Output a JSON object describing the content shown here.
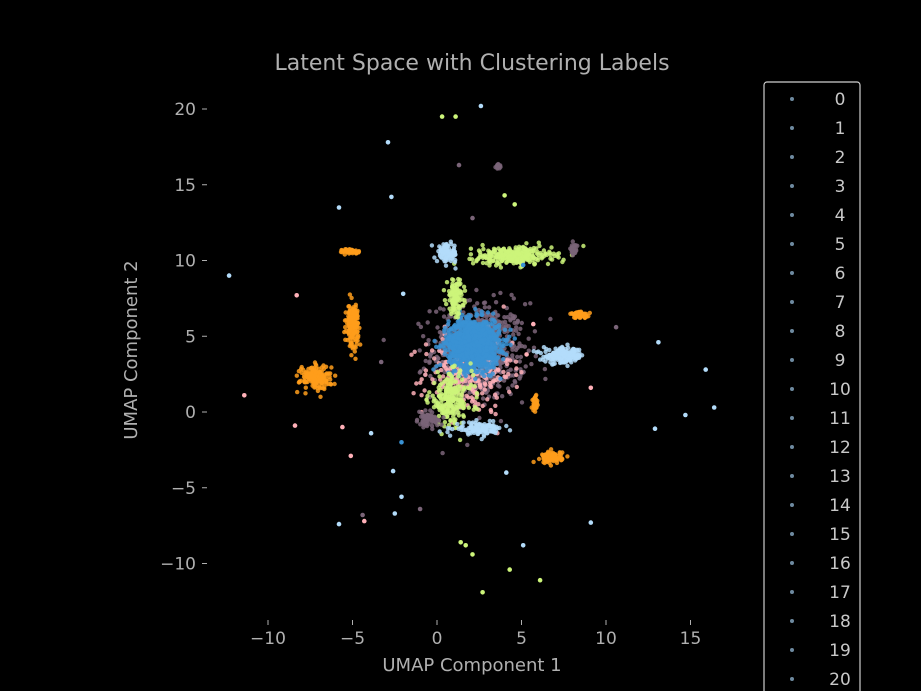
{
  "chart_data": {
    "type": "scatter",
    "title": "Latent Space with Clustering Labels",
    "xlabel": "UMAP Component 1",
    "ylabel": "UMAP Component 2",
    "xlim": [
      -13,
      17
    ],
    "ylim": [
      -13,
      22
    ],
    "xticks": [
      -10,
      -5,
      0,
      5,
      10,
      15
    ],
    "yticks": [
      -10,
      -5,
      0,
      5,
      10,
      15,
      20
    ],
    "xtick_labels": [
      "−10",
      "−5",
      "0",
      "5",
      "10",
      "15"
    ],
    "ytick_labels": [
      "−10",
      "−5",
      "0",
      "5",
      "10",
      "15",
      "20"
    ],
    "grid": false,
    "legend_placement": "right, outside plot",
    "legend": [
      "0",
      "1",
      "2",
      "3",
      "4",
      "5",
      "6",
      "7",
      "8",
      "9",
      "10",
      "11",
      "12",
      "13",
      "14",
      "15",
      "16",
      "17",
      "18",
      "19",
      "20"
    ],
    "colors": {
      "blue": "#3a92d4",
      "orange": "#ff9e1b",
      "lime": "#cdf57a",
      "mauve": "#7a6478",
      "pink": "#ffb0b8",
      "lightblue": "#b3dcfa",
      "legend_marker": "#6e8aa0"
    },
    "clusters": [
      {
        "color": "mauve",
        "cx": 2.5,
        "cy": 4.0,
        "sx": 2.8,
        "sy": 3.2,
        "n": 650
      },
      {
        "color": "pink",
        "cx": 1.8,
        "cy": 2.5,
        "sx": 2.6,
        "sy": 2.6,
        "n": 260
      },
      {
        "color": "blue",
        "cx": 2.2,
        "cy": 4.5,
        "sx": 1.5,
        "sy": 1.6,
        "n": 1300
      },
      {
        "color": "lime",
        "cx": 4.5,
        "cy": 10.3,
        "sx": 2.3,
        "sy": 0.6,
        "n": 300
      },
      {
        "color": "lime",
        "cx": 1.1,
        "cy": 7.6,
        "sx": 0.5,
        "sy": 1.1,
        "n": 120
      },
      {
        "color": "lime",
        "cx": 0.8,
        "cy": 0.8,
        "sx": 1.3,
        "sy": 1.7,
        "n": 220
      },
      {
        "color": "lightblue",
        "cx": 0.6,
        "cy": 10.5,
        "sx": 0.6,
        "sy": 0.6,
        "n": 90
      },
      {
        "color": "lightblue",
        "cx": 7.5,
        "cy": 3.7,
        "sx": 1.2,
        "sy": 0.5,
        "n": 170
      },
      {
        "color": "lightblue",
        "cx": 2.5,
        "cy": -1.1,
        "sx": 1.4,
        "sy": 0.4,
        "n": 120
      },
      {
        "color": "orange",
        "cx": -5.0,
        "cy": 5.8,
        "sx": 0.35,
        "sy": 1.3,
        "n": 180
      },
      {
        "color": "orange",
        "cx": -7.2,
        "cy": 2.3,
        "sx": 0.9,
        "sy": 0.8,
        "n": 170
      },
      {
        "color": "orange",
        "cx": -5.1,
        "cy": 10.6,
        "sx": 0.5,
        "sy": 0.15,
        "n": 60
      },
      {
        "color": "orange",
        "cx": 6.8,
        "cy": -3.0,
        "sx": 0.6,
        "sy": 0.4,
        "n": 90
      },
      {
        "color": "orange",
        "cx": 8.5,
        "cy": 6.4,
        "sx": 0.6,
        "sy": 0.2,
        "n": 60
      },
      {
        "color": "orange",
        "cx": 5.8,
        "cy": 0.6,
        "sx": 0.15,
        "sy": 0.5,
        "n": 40
      },
      {
        "color": "mauve",
        "cx": 8.1,
        "cy": 10.7,
        "sx": 0.2,
        "sy": 0.4,
        "n": 30
      },
      {
        "color": "mauve",
        "cx": 3.6,
        "cy": 16.2,
        "sx": 0.2,
        "sy": 0.15,
        "n": 15
      },
      {
        "color": "mauve",
        "cx": -0.5,
        "cy": -0.5,
        "sx": 0.6,
        "sy": 0.5,
        "n": 60
      }
    ],
    "outliers": [
      {
        "x": 0.3,
        "y": 19.5,
        "c": "lime"
      },
      {
        "x": 1.1,
        "y": 19.5,
        "c": "lime"
      },
      {
        "x": 2.6,
        "y": 20.2,
        "c": "lightblue"
      },
      {
        "x": -2.9,
        "y": 17.8,
        "c": "lightblue"
      },
      {
        "x": 1.3,
        "y": 16.3,
        "c": "mauve"
      },
      {
        "x": 4.0,
        "y": 14.3,
        "c": "lime"
      },
      {
        "x": 4.6,
        "y": 13.7,
        "c": "lime"
      },
      {
        "x": -2.7,
        "y": 14.2,
        "c": "lightblue"
      },
      {
        "x": -5.8,
        "y": 13.5,
        "c": "lightblue"
      },
      {
        "x": 2.1,
        "y": 12.8,
        "c": "mauve"
      },
      {
        "x": -12.3,
        "y": 9.0,
        "c": "lightblue"
      },
      {
        "x": -8.3,
        "y": 7.7,
        "c": "pink"
      },
      {
        "x": -2.0,
        "y": 7.8,
        "c": "lightblue"
      },
      {
        "x": 10.6,
        "y": 5.6,
        "c": "mauve"
      },
      {
        "x": 13.1,
        "y": 4.6,
        "c": "lightblue"
      },
      {
        "x": 15.9,
        "y": 2.8,
        "c": "lightblue"
      },
      {
        "x": 16.4,
        "y": 0.3,
        "c": "lightblue"
      },
      {
        "x": 14.7,
        "y": -0.2,
        "c": "lightblue"
      },
      {
        "x": 12.9,
        "y": -1.1,
        "c": "lightblue"
      },
      {
        "x": -11.4,
        "y": 1.1,
        "c": "pink"
      },
      {
        "x": -8.4,
        "y": -0.9,
        "c": "pink"
      },
      {
        "x": -5.6,
        "y": -1.0,
        "c": "pink"
      },
      {
        "x": -3.9,
        "y": -1.4,
        "c": "lightblue"
      },
      {
        "x": -2.1,
        "y": -2.0,
        "c": "blue"
      },
      {
        "x": -5.1,
        "y": -2.9,
        "c": "pink"
      },
      {
        "x": -2.6,
        "y": -3.9,
        "c": "lightblue"
      },
      {
        "x": 4.1,
        "y": -4.0,
        "c": "lightblue"
      },
      {
        "x": -2.1,
        "y": -5.6,
        "c": "lightblue"
      },
      {
        "x": -1.0,
        "y": -6.4,
        "c": "mauve"
      },
      {
        "x": -2.5,
        "y": -6.7,
        "c": "lightblue"
      },
      {
        "x": -4.4,
        "y": -6.8,
        "c": "mauve"
      },
      {
        "x": -4.3,
        "y": -7.2,
        "c": "pink"
      },
      {
        "x": -5.8,
        "y": -7.4,
        "c": "lightblue"
      },
      {
        "x": 9.1,
        "y": -7.3,
        "c": "lightblue"
      },
      {
        "x": 1.4,
        "y": -8.6,
        "c": "lime"
      },
      {
        "x": 1.7,
        "y": -8.8,
        "c": "lime"
      },
      {
        "x": 5.1,
        "y": -8.8,
        "c": "lightblue"
      },
      {
        "x": 2.1,
        "y": -9.4,
        "c": "lime"
      },
      {
        "x": 4.3,
        "y": -10.4,
        "c": "lime"
      },
      {
        "x": 6.1,
        "y": -11.1,
        "c": "lime"
      },
      {
        "x": 2.7,
        "y": -11.9,
        "c": "lime"
      },
      {
        "x": 9.1,
        "y": 1.6,
        "c": "pink"
      },
      {
        "x": 5.3,
        "y": 3.8,
        "c": "pink"
      },
      {
        "x": 5.7,
        "y": 5.8,
        "c": "pink"
      },
      {
        "x": -3.3,
        "y": 3.3,
        "c": "mauve"
      },
      {
        "x": 5.1,
        "y": 9.7,
        "c": "blue"
      }
    ]
  }
}
